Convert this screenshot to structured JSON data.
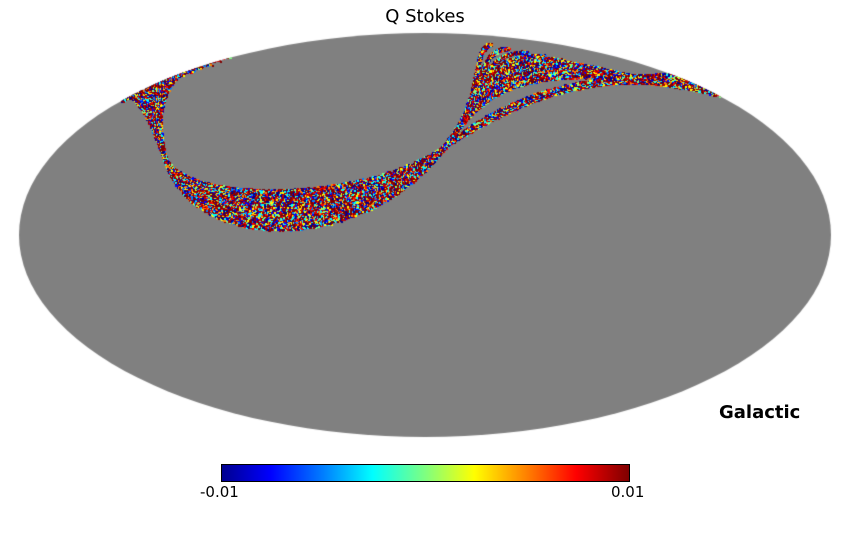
{
  "chart_data": {
    "type": "heatmap",
    "projection": "mollweide",
    "title": "Q Stokes",
    "coordinate_system": "Galactic",
    "colormap": "jet",
    "colorbar": {
      "min_label": "-0.01",
      "max_label": "0.01",
      "range": [
        -0.01,
        0.01
      ]
    },
    "background_value_color": "#808080",
    "description_of_coverage": "scan strips in northern hemisphere, remainder zero"
  }
}
